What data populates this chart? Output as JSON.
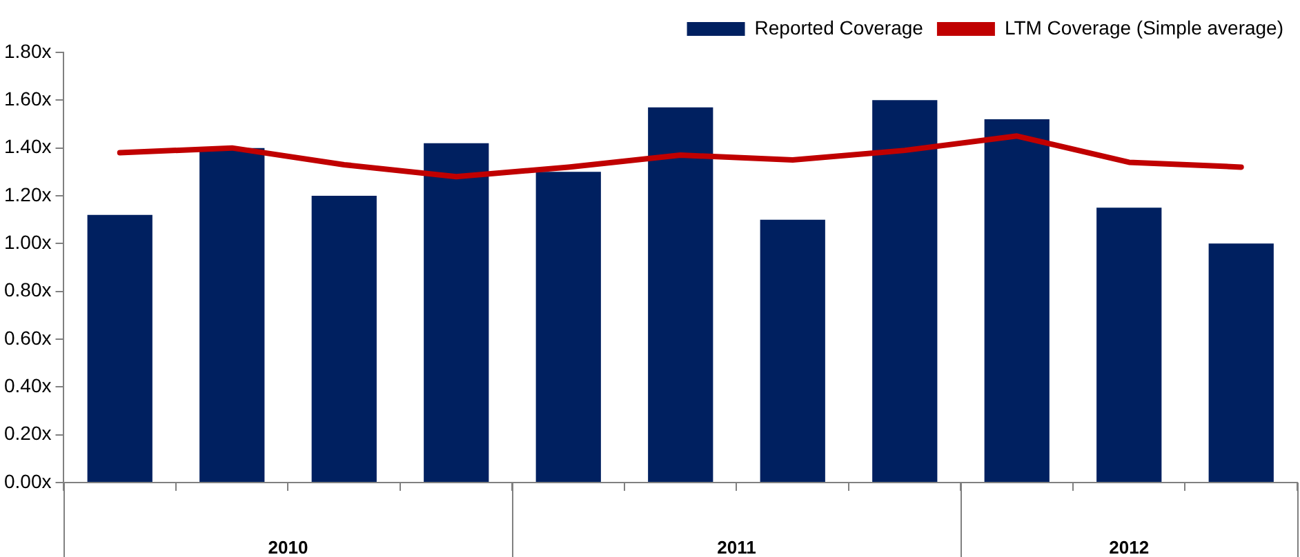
{
  "chart_data": {
    "type": "bar",
    "categories": [
      null,
      null,
      null,
      null,
      null,
      null,
      null,
      null,
      null,
      null,
      null
    ],
    "series": [
      {
        "name": "Reported Coverage",
        "color": "#002060",
        "values": [
          1.12,
          1.4,
          1.2,
          1.42,
          1.3,
          1.57,
          1.1,
          1.6,
          1.52,
          1.15,
          1.0
        ]
      },
      {
        "name": "LTM Coverage (Simple average)",
        "type": "line",
        "color": "#c00000",
        "values": [
          1.38,
          1.4,
          1.33,
          1.28,
          1.32,
          1.37,
          1.35,
          1.39,
          1.45,
          1.34,
          1.32
        ]
      }
    ],
    "ylim": [
      0,
      1.8
    ],
    "yticks": [
      {
        "value": 0,
        "label": "0.00x"
      },
      {
        "value": 0.2,
        "label": "0.20x"
      },
      {
        "value": 0.4,
        "label": "0.40x"
      },
      {
        "value": 0.6,
        "label": "0.60x"
      },
      {
        "value": 0.8,
        "label": "0.80x"
      },
      {
        "value": 1.0,
        "label": "1.00x"
      },
      {
        "value": 1.2,
        "label": "1.20x"
      },
      {
        "value": 1.4,
        "label": "1.40x"
      },
      {
        "value": 1.6,
        "label": "1.60x"
      },
      {
        "value": 1.8,
        "label": "1.80x"
      }
    ],
    "annotations": [
      "2010",
      "2011",
      "2012"
    ],
    "grid": false,
    "legend": "top",
    "marker": "none",
    "line_style": "solid"
  }
}
